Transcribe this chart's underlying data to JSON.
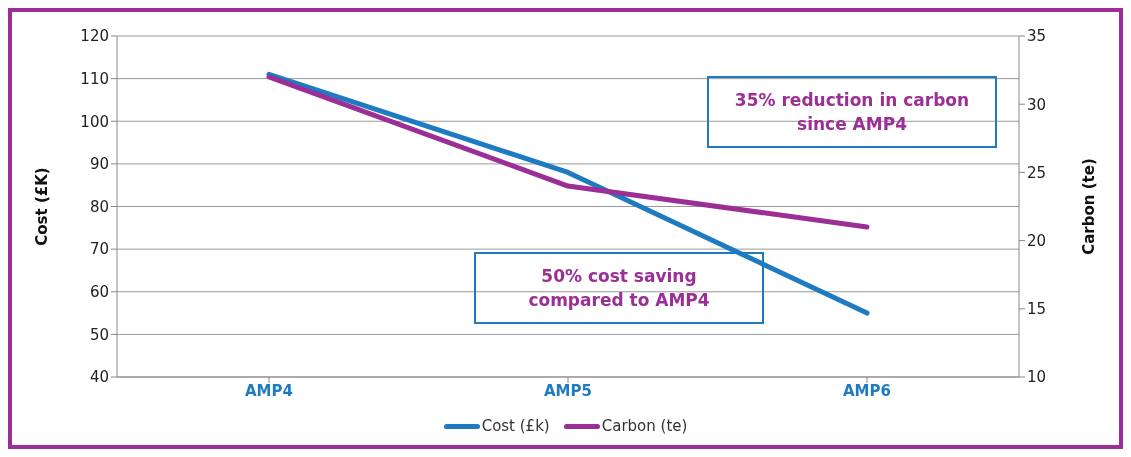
{
  "chart_data": {
    "type": "line",
    "categories": [
      "AMP4",
      "AMP5",
      "AMP6"
    ],
    "series": [
      {
        "name": "Cost (£k)",
        "color": "#1f7bc1",
        "values": [
          111,
          88,
          55
        ]
      },
      {
        "name": "Carbon (te)",
        "color": "#9b2f96",
        "values": [
          32,
          24,
          21
        ],
        "axis": "y2"
      }
    ],
    "ylabel": "Cost (£K)",
    "y2label": "Carbon (te)",
    "ylim": [
      40,
      120
    ],
    "yticks": [
      40,
      50,
      60,
      70,
      80,
      90,
      100,
      110,
      120
    ],
    "y2lim": [
      10,
      35
    ],
    "y2ticks": [
      10,
      15,
      20,
      25,
      30,
      35
    ],
    "grid": "y",
    "legend": "bottom",
    "marker": "none",
    "line_style": "solid",
    "annotations": [
      "35% reduction in carbon since AMP4",
      "50% cost saving compared to AMP4"
    ]
  }
}
